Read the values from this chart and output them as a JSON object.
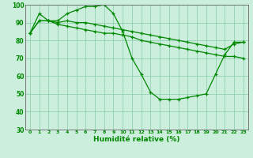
{
  "title": "",
  "xlabel": "Humidité relative (%)",
  "ylabel": "",
  "xlim": [
    -0.5,
    23.5
  ],
  "ylim": [
    30,
    100
  ],
  "yticks": [
    30,
    40,
    50,
    60,
    70,
    80,
    90,
    100
  ],
  "xticks": [
    0,
    1,
    2,
    3,
    4,
    5,
    6,
    7,
    8,
    9,
    10,
    11,
    12,
    13,
    14,
    15,
    16,
    17,
    18,
    19,
    20,
    21,
    22,
    23
  ],
  "background_color": "#cceedd",
  "grid_color": "#88ccaa",
  "line_color": "#008800",
  "hours": [
    0,
    1,
    2,
    3,
    4,
    5,
    6,
    7,
    8,
    9,
    10,
    11,
    12,
    13,
    14,
    15,
    16,
    17,
    18,
    19,
    20,
    21,
    22,
    23
  ],
  "line_max": [
    84,
    95,
    91,
    91,
    95,
    97,
    99,
    99,
    100,
    95,
    85,
    70,
    61,
    51,
    47,
    47,
    47,
    48,
    49,
    50,
    61,
    72,
    79,
    79
  ],
  "line_mean": [
    84,
    91,
    91,
    90,
    91,
    90,
    90,
    89,
    88,
    87,
    86,
    85,
    84,
    83,
    82,
    81,
    80,
    79,
    78,
    77,
    76,
    75,
    78,
    79
  ],
  "line_min": [
    84,
    91,
    91,
    89,
    88,
    87,
    86,
    85,
    84,
    84,
    83,
    82,
    80,
    79,
    78,
    77,
    76,
    75,
    74,
    73,
    72,
    71,
    71,
    70
  ]
}
